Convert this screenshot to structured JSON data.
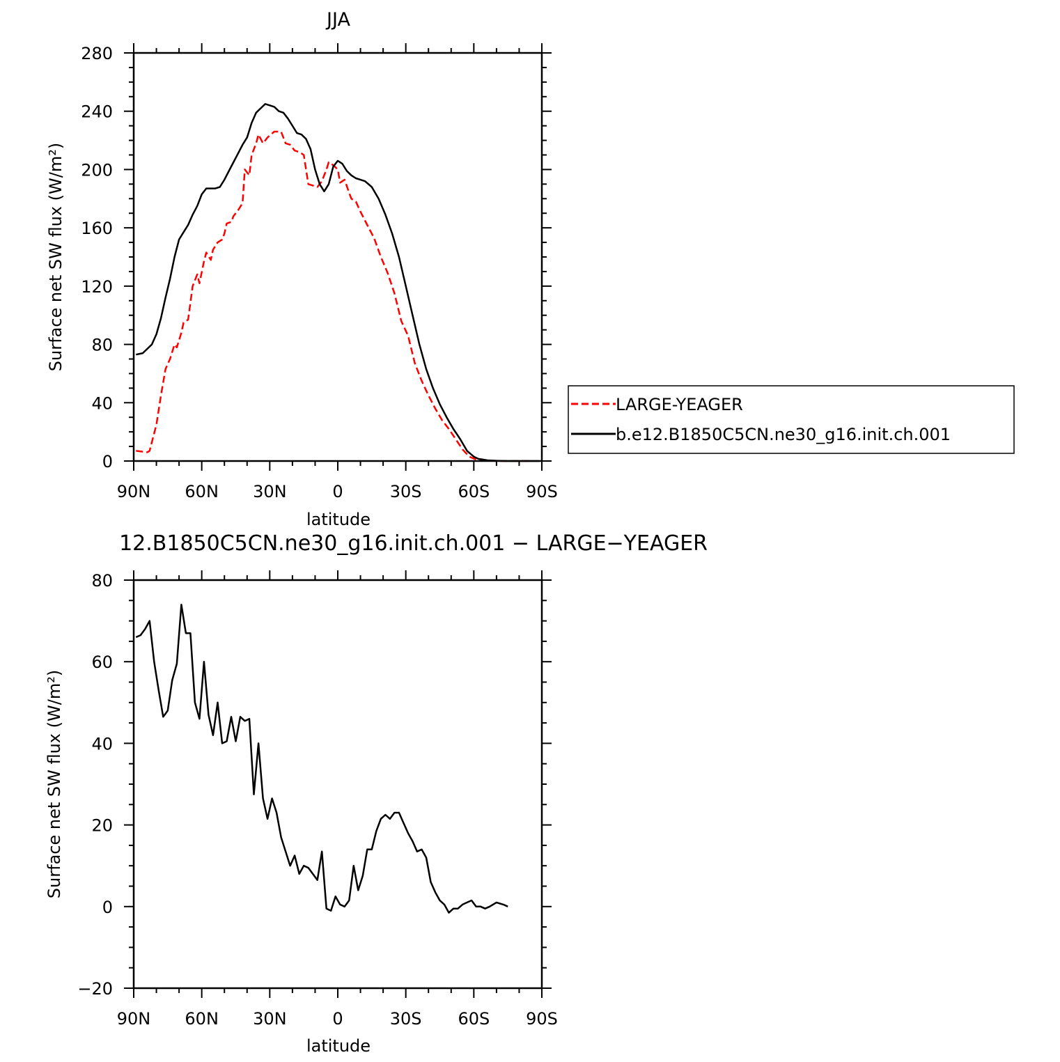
{
  "chart_data": [
    {
      "type": "line",
      "title": "JJA",
      "xlabel": "latitude",
      "ylabel": "Surface net SW flux (W/m²)",
      "xlim": [
        90,
        -90
      ],
      "ylim": [
        0,
        280
      ],
      "x_ticks": [
        90,
        60,
        30,
        0,
        -30,
        -60,
        -90
      ],
      "x_tick_labels": [
        "90N",
        "60N",
        "30N",
        "0",
        "30S",
        "60S",
        "90S"
      ],
      "y_ticks": [
        0,
        40,
        80,
        120,
        160,
        200,
        240,
        280
      ],
      "y_tick_labels": [
        "0",
        "40",
        "80",
        "120",
        "160",
        "200",
        "240",
        "280"
      ],
      "legend": "right",
      "series": [
        {
          "name": "LARGE-YEAGER",
          "color": "#ff0000",
          "dash": true,
          "x": [
            89,
            84,
            83,
            80,
            78,
            76,
            74,
            72,
            71,
            69,
            68,
            66,
            64,
            62,
            61,
            59,
            58,
            56,
            55,
            53,
            51,
            50,
            49,
            47,
            46,
            44,
            42,
            41,
            39,
            38,
            36,
            35,
            33,
            31,
            28,
            25,
            23,
            21,
            19,
            17,
            15,
            13,
            11,
            9,
            7,
            5,
            4,
            2,
            0,
            -1,
            -3,
            -5,
            -6,
            -8,
            -10,
            -13,
            -16,
            -19,
            -22,
            -25,
            -28,
            -31,
            -34,
            -37,
            -40,
            -43,
            -46,
            -49,
            -52,
            -55,
            -58,
            -61,
            -63,
            -65,
            -68,
            -72,
            -76,
            -80,
            -85
          ],
          "values": [
            7,
            6,
            7,
            25,
            45,
            63,
            70,
            80,
            78,
            88,
            95,
            97,
            120,
            128,
            122,
            137,
            143,
            138,
            145,
            150,
            152,
            156,
            163,
            164,
            168,
            172,
            177,
            200,
            196,
            210,
            218,
            224,
            218,
            222,
            226,
            226,
            218,
            217,
            213,
            212,
            210,
            190,
            189,
            188,
            192,
            200,
            205,
            203,
            200,
            191,
            193,
            184,
            180,
            178,
            171,
            162,
            153,
            140,
            129,
            115,
            96,
            86,
            67,
            55,
            45,
            36,
            28,
            22,
            15,
            8,
            3,
            1,
            0.5,
            0.2,
            0.1,
            0,
            0,
            0,
            0
          ]
        },
        {
          "name": "b.e12.B1850C5CN.ne30_g16.init.ch.001",
          "color": "#000000",
          "dash": false,
          "x": [
            89,
            86,
            84,
            82,
            80,
            78,
            76,
            74,
            72,
            70,
            68,
            66,
            64,
            62,
            60,
            58,
            56,
            54,
            52,
            50,
            48,
            46,
            44,
            42,
            40,
            38,
            36,
            34,
            32,
            30,
            28,
            26,
            24,
            22,
            20,
            18,
            16,
            14,
            12,
            10,
            8,
            6,
            4,
            2,
            0,
            -2,
            -4,
            -6,
            -8,
            -10,
            -12,
            -15,
            -18,
            -21,
            -24,
            -27,
            -30,
            -33,
            -36,
            -39,
            -42,
            -45,
            -48,
            -51,
            -54,
            -57,
            -60,
            -62,
            -64,
            -66,
            -70,
            -75,
            -80,
            -85,
            -89
          ],
          "values": [
            73,
            74,
            77,
            80,
            87,
            98,
            112,
            125,
            140,
            152,
            157,
            162,
            169,
            175,
            183,
            187,
            187,
            187,
            188,
            193,
            199,
            205,
            211,
            217,
            222,
            232,
            239,
            242,
            245,
            244,
            243,
            240,
            239,
            235,
            230,
            225,
            224,
            221,
            214,
            200,
            190,
            185,
            190,
            202,
            206,
            204,
            199,
            196,
            194,
            193,
            192,
            188,
            180,
            169,
            156,
            140,
            120,
            100,
            80,
            63,
            50,
            39,
            30,
            22,
            15,
            7,
            3,
            1.5,
            1,
            0.5,
            0.2,
            0,
            0,
            0,
            0
          ]
        }
      ]
    },
    {
      "type": "line",
      "title": "12.B1850C5CN.ne30_g16.init.ch.001 − LARGE−YEAGER",
      "xlabel": "latitude",
      "ylabel": "Surface net SW flux (W/m²)",
      "xlim": [
        90,
        -90
      ],
      "ylim": [
        -20,
        80
      ],
      "x_ticks": [
        90,
        60,
        30,
        0,
        -30,
        -60,
        -90
      ],
      "x_tick_labels": [
        "90N",
        "60N",
        "30N",
        "0",
        "30S",
        "60S",
        "90S"
      ],
      "y_ticks": [
        -20,
        0,
        20,
        40,
        60,
        80
      ],
      "y_tick_labels": [
        "−20",
        "0",
        "20",
        "40",
        "60",
        "80"
      ],
      "series": [
        {
          "color": "#000000",
          "dash": false,
          "x": [
            89,
            87,
            85,
            83,
            81,
            79,
            77,
            75,
            73,
            71,
            69,
            67,
            65,
            63,
            61,
            59,
            57,
            55,
            53,
            51,
            49,
            47,
            45,
            43,
            41,
            39,
            37,
            35,
            33,
            31,
            29,
            27,
            25,
            23,
            21,
            19,
            17,
            15,
            13,
            11,
            9,
            7,
            5,
            3,
            1,
            -1,
            -3,
            -5,
            -7,
            -9,
            -11,
            -13,
            -15,
            -17,
            -19,
            -21,
            -23,
            -25,
            -27,
            -29,
            -31,
            -33,
            -35,
            -37,
            -39,
            -41,
            -43,
            -45,
            -47,
            -49,
            -51,
            -53,
            -55,
            -57,
            -59,
            -61,
            -63,
            -65,
            -67,
            -70,
            -73,
            -75
          ],
          "values": [
            66,
            66.5,
            68,
            70,
            60,
            53,
            46.5,
            48,
            55.5,
            59.5,
            74,
            67,
            67,
            50,
            46,
            60,
            47,
            42,
            50,
            40,
            40.5,
            46.5,
            40.5,
            46.5,
            45.5,
            46,
            27.5,
            40,
            26.5,
            21.5,
            26.5,
            23,
            17,
            13.5,
            10,
            12.5,
            8,
            10,
            9.5,
            8,
            6.5,
            13.5,
            -0.5,
            -1,
            2.5,
            0.5,
            0,
            1.5,
            10,
            4,
            7.5,
            14,
            14,
            18.5,
            21.5,
            22.5,
            21.5,
            23,
            23,
            20.5,
            18,
            16,
            13.5,
            14,
            12,
            6,
            3.5,
            1.5,
            0.5,
            -1.5,
            -0.5,
            -0.5,
            0.5,
            1,
            1.5,
            0,
            0,
            -0.5,
            0,
            1,
            0.5,
            0
          ]
        }
      ]
    }
  ]
}
